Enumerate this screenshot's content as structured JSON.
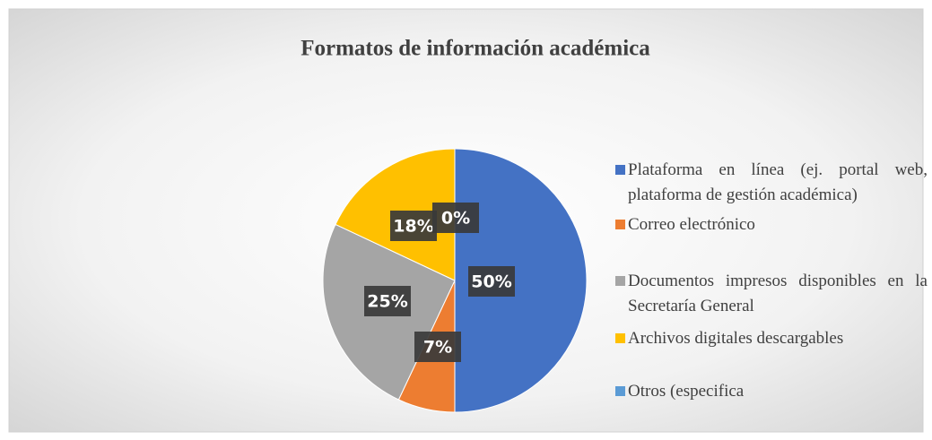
{
  "chart_data": {
    "type": "pie",
    "title": "Formatos de información académica",
    "categories": [
      "Plataforma en línea (ej. portal web, plataforma de gestión académica)",
      "Correo electrónico",
      "Documentos impresos disponibles en la Secretaría General",
      "Archivos digitales descargables",
      "Otros (especifica"
    ],
    "values": [
      50,
      7,
      25,
      18,
      0
    ],
    "value_labels": [
      "50%",
      "7%",
      "25%",
      "18%",
      "0%"
    ],
    "colors": [
      "#4472c4",
      "#ed7d31",
      "#a5a5a5",
      "#ffc000",
      "#5b9bd5"
    ],
    "legend": "right"
  }
}
